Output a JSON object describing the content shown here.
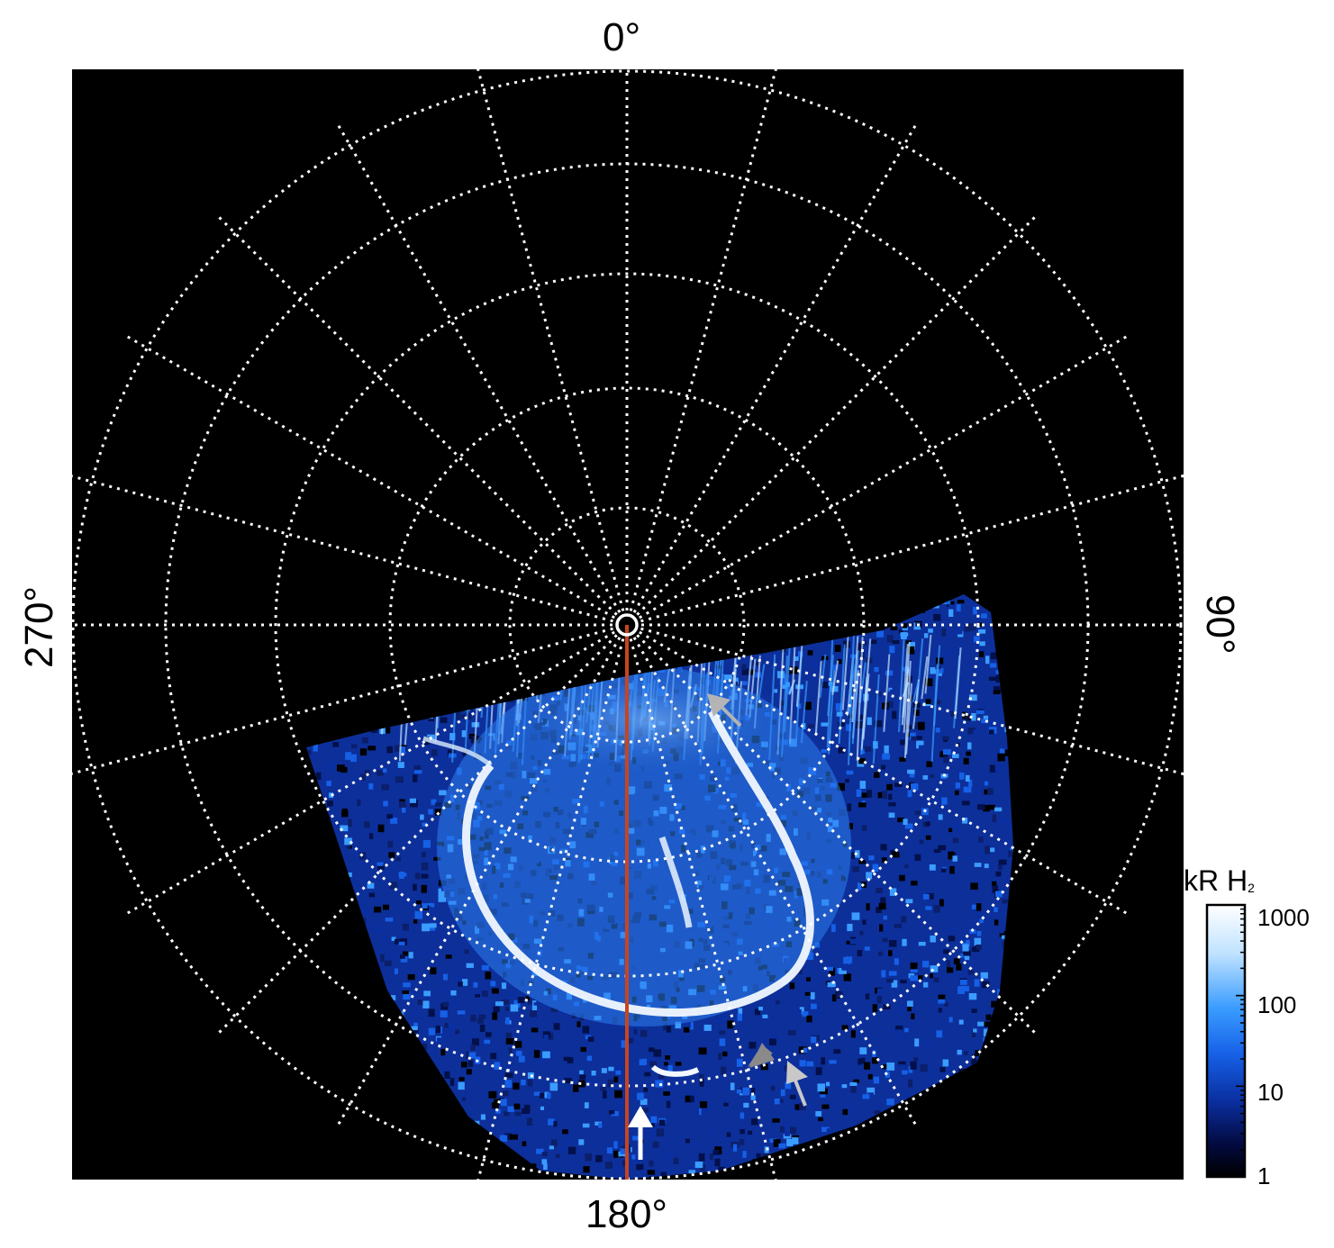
{
  "longitude_labels": {
    "top": "0°",
    "right": "90°",
    "bottom": "180°",
    "left": "270°"
  },
  "colorbar": {
    "title_main": "kR H",
    "title_sub": "2",
    "scale": "log",
    "ticks": [
      "1000",
      "100",
      "10",
      "1"
    ],
    "colors": [
      "#ffffff",
      "#bfe2ff",
      "#3a9cff",
      "#1660e6",
      "#0a2fa0",
      "#030a40",
      "#000000"
    ]
  },
  "image": {
    "background": "#000000",
    "grid_color": "#ffffff",
    "meridian_line_color": "#c8441f",
    "arrows": [
      {
        "color": "#b4b4b4"
      },
      {
        "color": "#8a8a8a"
      },
      {
        "color": "#c8c8c8"
      },
      {
        "color": "#ffffff"
      }
    ]
  }
}
